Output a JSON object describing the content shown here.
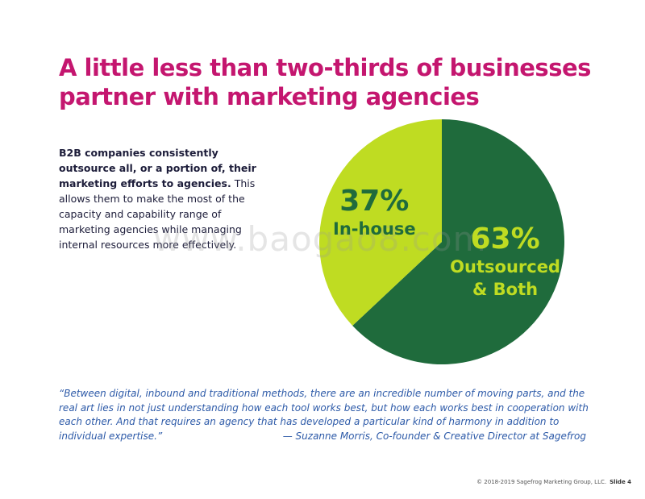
{
  "title": "A little less than two-thirds of businesses partner with marketing agencies",
  "body": {
    "bold": "B2B companies consistently outsource all, or a portion of, their marketing efforts to agencies.",
    "text": "This allows them to make the most of the capacity and capability range of marketing agencies while managing internal resources more effectively."
  },
  "chart_data": {
    "type": "pie",
    "categories": [
      "Outsourced & Both",
      "In-house"
    ],
    "values": [
      63,
      37
    ],
    "value_labels": [
      "63%",
      "37%"
    ],
    "colors": [
      "#1f6b3c",
      "#bfdc22"
    ]
  },
  "quote": {
    "text": "“Between digital, inbound and traditional methods, there are an incredible number of moving parts, and the real art lies in not just understanding how each tool works best, but how each works best in cooperation with each other. And that requires an agency that has developed a particular kind of harmony in addition to individual expertise.”",
    "attribution": "— Suzanne Morris, Co-founder & Creative Director at Sagefrog"
  },
  "footer": {
    "copyright": "© 2018-2019 Sagefrog Marketing Group, LLC.",
    "slide": "Slide 4"
  },
  "watermark": "www.baogao8.com"
}
